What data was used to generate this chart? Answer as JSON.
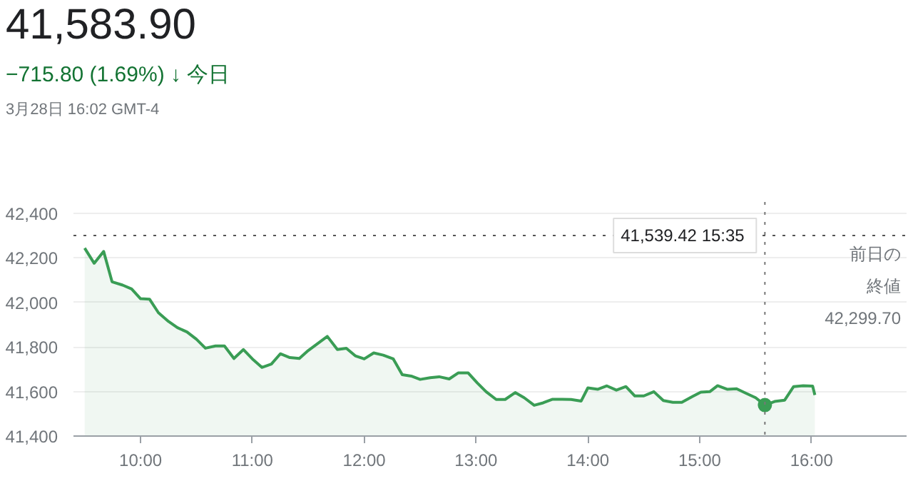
{
  "chart_data": {
    "type": "area",
    "title": "41,583.90",
    "subtitle": "−715.80 (1.69%) ↓ 今日",
    "annotations": [
      "3月28日 16:02 GMT-4",
      "41,539.42  15:35"
    ],
    "x": [
      9.5,
      9.585,
      9.67,
      9.745,
      9.84,
      9.92,
      10.0,
      10.08,
      10.16,
      10.25,
      10.33,
      10.415,
      10.5,
      10.58,
      10.67,
      10.75,
      10.835,
      10.92,
      11.0,
      11.085,
      11.17,
      11.25,
      11.335,
      11.42,
      11.5,
      11.67,
      11.76,
      11.84,
      11.92,
      12.0,
      12.085,
      12.17,
      12.26,
      12.34,
      12.42,
      12.5,
      12.59,
      12.67,
      12.76,
      12.84,
      12.93,
      13.01,
      13.09,
      13.18,
      13.26,
      13.35,
      13.43,
      13.52,
      13.6,
      13.685,
      13.77,
      13.85,
      13.94,
      14.0,
      14.09,
      14.17,
      14.255,
      14.34,
      14.42,
      14.5,
      14.59,
      14.675,
      14.76,
      14.84,
      14.93,
      15.01,
      15.09,
      15.16,
      15.245,
      15.33,
      15.41,
      15.5,
      15.583,
      15.67,
      15.76,
      15.84,
      15.925,
      16.01,
      16.03
    ],
    "series": [
      {
        "color": "#3a9d55",
        "values": [
          42243,
          42175,
          42228,
          42092,
          42077,
          42060,
          42016,
          42014,
          41953,
          41914,
          41886,
          41867,
          41834,
          41794,
          41804,
          41804,
          41748,
          41788,
          41746,
          41708,
          41723,
          41769,
          41752,
          41748,
          41784,
          41847,
          41788,
          41794,
          41760,
          41746,
          41773,
          41763,
          41746,
          41675,
          41669,
          41654,
          41662,
          41666,
          41656,
          41683,
          41683,
          41639,
          41599,
          41564,
          41564,
          41595,
          41572,
          41538,
          41549,
          41565,
          41565,
          41564,
          41557,
          41616,
          41610,
          41625,
          41606,
          41622,
          41580,
          41580,
          41599,
          41559,
          41551,
          41551,
          41576,
          41597,
          41599,
          41626,
          41610,
          41612,
          41593,
          41572,
          41539,
          41555,
          41561,
          41622,
          41626,
          41624,
          41584
        ]
      }
    ],
    "xlim": [
      9.4,
      16.85
    ],
    "ylim": [
      41400,
      42450
    ],
    "xticks": [
      {
        "value": 10,
        "label": "10:00"
      },
      {
        "value": 11,
        "label": "11:00"
      },
      {
        "value": 12,
        "label": "12:00"
      },
      {
        "value": 13,
        "label": "13:00"
      },
      {
        "value": 14,
        "label": "14:00"
      },
      {
        "value": 15,
        "label": "15:00"
      },
      {
        "value": 16,
        "label": "16:00"
      }
    ],
    "yticks": [
      {
        "value": 41400,
        "label": "41,400"
      },
      {
        "value": 41600,
        "label": "41,600"
      },
      {
        "value": 41800,
        "label": "41,800"
      },
      {
        "value": 42000,
        "label": "42,000"
      },
      {
        "value": 42200,
        "label": "42,200"
      },
      {
        "value": 42400,
        "label": "42,400"
      }
    ],
    "ref_lines": [
      {
        "axis": "y",
        "value": 42299.7,
        "label": "前日の終値\n42,299.70",
        "color": "#555555",
        "line_style": "dotted"
      },
      {
        "axis": "x",
        "value": 15.583,
        "color": "#777777",
        "line_style": "dotted"
      }
    ],
    "grid": "y"
  }
}
